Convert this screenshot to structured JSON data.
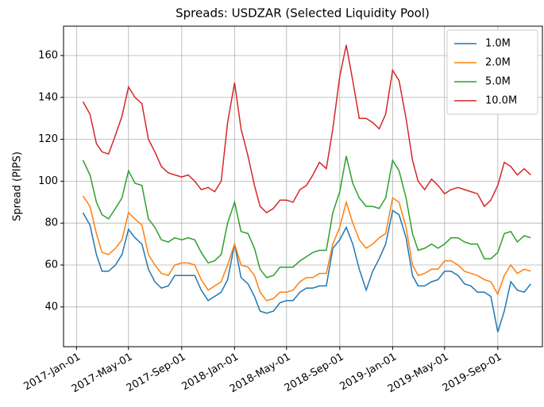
{
  "chart_data": {
    "type": "line",
    "title": "Spreads: USDZAR (Selected Liquidity Pool)",
    "y_label": "Spread (PIPS)",
    "x": [
      "2017-01-16",
      "2017-02-01",
      "2017-02-16",
      "2017-03-01",
      "2017-03-16",
      "2017-04-01",
      "2017-04-16",
      "2017-05-01",
      "2017-05-16",
      "2017-06-01",
      "2017-06-16",
      "2017-07-01",
      "2017-07-16",
      "2017-08-01",
      "2017-08-16",
      "2017-09-01",
      "2017-09-16",
      "2017-10-01",
      "2017-10-16",
      "2017-11-01",
      "2017-11-16",
      "2017-12-01",
      "2017-12-16",
      "2018-01-01",
      "2018-01-16",
      "2018-02-01",
      "2018-02-16",
      "2018-03-01",
      "2018-03-16",
      "2018-04-01",
      "2018-04-16",
      "2018-05-01",
      "2018-05-16",
      "2018-06-01",
      "2018-06-16",
      "2018-07-01",
      "2018-07-16",
      "2018-08-01",
      "2018-08-16",
      "2018-09-01",
      "2018-09-16",
      "2018-10-01",
      "2018-10-16",
      "2018-11-01",
      "2018-11-16",
      "2018-12-01",
      "2018-12-16",
      "2019-01-01",
      "2019-01-16",
      "2019-02-01",
      "2019-02-16",
      "2019-03-01",
      "2019-03-16",
      "2019-04-01",
      "2019-04-16",
      "2019-05-01",
      "2019-05-16",
      "2019-06-01",
      "2019-06-16",
      "2019-07-01",
      "2019-07-16",
      "2019-08-01",
      "2019-08-16",
      "2019-09-01",
      "2019-09-16",
      "2019-10-01",
      "2019-10-16",
      "2019-11-01",
      "2019-11-16"
    ],
    "series": [
      {
        "name": "1.0M",
        "color": "#1f77b4",
        "values": [
          85,
          79,
          65,
          57,
          57,
          60,
          65,
          77,
          73,
          70,
          58,
          52,
          49,
          50,
          55,
          55,
          55,
          55,
          48,
          43,
          45,
          47,
          53,
          70,
          54,
          51,
          45,
          38,
          37,
          38,
          42,
          43,
          43,
          47,
          49,
          49,
          50,
          50,
          68,
          72,
          78,
          70,
          58,
          48,
          57,
          63,
          70,
          86,
          84,
          73,
          55,
          50,
          50,
          52,
          53,
          57,
          57,
          55,
          51,
          50,
          47,
          47,
          45,
          28,
          38,
          52,
          48,
          47,
          51
        ]
      },
      {
        "name": "2.0M",
        "color": "#ff7f0e",
        "values": [
          93,
          88,
          75,
          66,
          65,
          68,
          72,
          85,
          82,
          79,
          65,
          60,
          56,
          55,
          60,
          61,
          61,
          60,
          53,
          48,
          50,
          52,
          60,
          70,
          60,
          59,
          55,
          47,
          43,
          44,
          47,
          47,
          48,
          52,
          54,
          54,
          56,
          56,
          70,
          78,
          90,
          80,
          72,
          68,
          70,
          73,
          75,
          92,
          90,
          78,
          60,
          55,
          56,
          58,
          58,
          62,
          62,
          60,
          57,
          56,
          55,
          53,
          52,
          46,
          55,
          60,
          56,
          58,
          57
        ]
      },
      {
        "name": "5.0M",
        "color": "#2ca02c",
        "values": [
          110,
          103,
          90,
          84,
          82,
          87,
          92,
          105,
          99,
          98,
          82,
          78,
          72,
          71,
          73,
          72,
          73,
          72,
          66,
          61,
          62,
          65,
          80,
          90,
          76,
          75,
          68,
          58,
          54,
          55,
          59,
          59,
          59,
          62,
          64,
          66,
          67,
          67,
          85,
          95,
          112,
          99,
          92,
          88,
          88,
          87,
          92,
          110,
          105,
          92,
          75,
          67,
          68,
          70,
          68,
          70,
          73,
          73,
          71,
          70,
          70,
          63,
          63,
          66,
          75,
          76,
          71,
          74,
          73
        ]
      },
      {
        "name": "10.0M",
        "color": "#d62728",
        "values": [
          138,
          132,
          118,
          114,
          113,
          122,
          131,
          145,
          140,
          137,
          120,
          114,
          107,
          104,
          103,
          102,
          103,
          100,
          96,
          97,
          95,
          100,
          128,
          147,
          125,
          112,
          98,
          88,
          85,
          87,
          91,
          91,
          90,
          96,
          98,
          103,
          109,
          106,
          125,
          150,
          165,
          148,
          130,
          130,
          128,
          125,
          132,
          153,
          148,
          130,
          110,
          100,
          96,
          101,
          98,
          94,
          96,
          97,
          96,
          95,
          94,
          88,
          91,
          98,
          109,
          107,
          103,
          106,
          103
        ]
      }
    ],
    "xlim": [
      "2016-12-02",
      "2019-12-13"
    ],
    "xticks": [
      {
        "value": "2017-01-01",
        "label": "2017-Jan-01"
      },
      {
        "value": "2017-05-01",
        "label": "2017-May-01"
      },
      {
        "value": "2017-09-01",
        "label": "2017-Sep-01"
      },
      {
        "value": "2018-01-01",
        "label": "2018-Jan-01"
      },
      {
        "value": "2018-05-01",
        "label": "2018-May-01"
      },
      {
        "value": "2018-09-01",
        "label": "2018-Sep-01"
      },
      {
        "value": "2019-01-01",
        "label": "2019-Jan-01"
      },
      {
        "value": "2019-05-01",
        "label": "2019-May-01"
      },
      {
        "value": "2019-09-01",
        "label": "2019-Sep-01"
      }
    ],
    "ylim": [
      21,
      174
    ],
    "yticks": [
      40,
      60,
      80,
      100,
      120,
      140,
      160
    ],
    "grid": true,
    "legend": "upper right"
  }
}
